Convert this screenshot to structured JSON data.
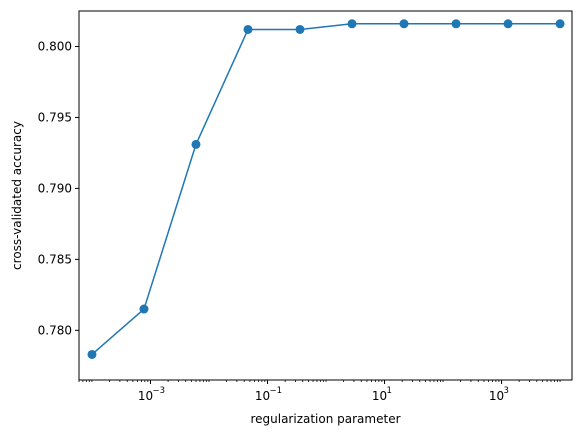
{
  "chart_data": {
    "type": "line",
    "title": "",
    "xlabel": "regularization parameter",
    "ylabel": "cross-validated accuracy",
    "x_scale": "log",
    "grid": false,
    "legend": "none",
    "xlim": [
      6e-05,
      16000.0
    ],
    "ylim": [
      0.7765,
      0.8025
    ],
    "x_ticks": [
      {
        "value": 0.001,
        "base": "10",
        "exp": "−3"
      },
      {
        "value": 0.1,
        "base": "10",
        "exp": "−1"
      },
      {
        "value": 10,
        "base": "10",
        "exp": "1"
      },
      {
        "value": 1000,
        "base": "10",
        "exp": "3"
      }
    ],
    "y_ticks": [
      {
        "value": 0.78,
        "label": "0.780"
      },
      {
        "value": 0.785,
        "label": "0.785"
      },
      {
        "value": 0.79,
        "label": "0.790"
      },
      {
        "value": 0.795,
        "label": "0.795"
      },
      {
        "value": 0.8,
        "label": "0.800"
      }
    ],
    "series": [
      {
        "color": "#1f77b4",
        "marker": "circle",
        "x": [
          0.0001,
          0.000774,
          0.00599,
          0.0464,
          0.359,
          2.78,
          21.5,
          167,
          1292,
          10000
        ],
        "y": [
          0.7783,
          0.7815,
          0.7931,
          0.8012,
          0.8012,
          0.8016,
          0.8016,
          0.8016,
          0.8016,
          0.8016
        ]
      }
    ]
  }
}
